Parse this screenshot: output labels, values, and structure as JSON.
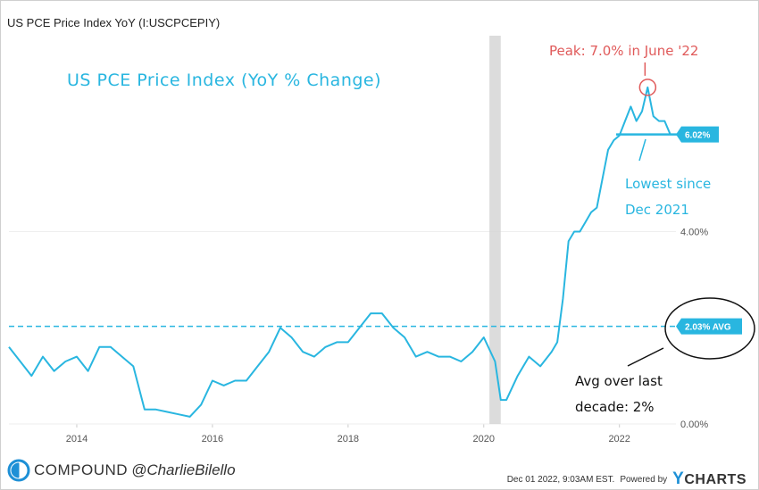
{
  "header": {
    "title": "US PCE Price Index YoY (I:USCPCEPIY)"
  },
  "footer": {
    "brand_name": "COMPOUND",
    "brand_handle": "@CharlieBilello",
    "timestamp": "Dec 01 2022, 9:03AM EST.",
    "powered_by": "Powered by",
    "provider_y": "Y",
    "provider_rest": "CHARTS"
  },
  "colors": {
    "series": "#29b6e0",
    "peak_annotation": "#e05a5a",
    "avg_annotation": "#111111",
    "recession_shade": "#d3d3d3",
    "grid": "#eeeeee"
  },
  "chart_data": {
    "type": "line",
    "title": "US PCE Price Index (YoY % Change)",
    "xlabel": "",
    "ylabel": "",
    "x_ticks": [
      "2014",
      "2016",
      "2018",
      "2020",
      "2022"
    ],
    "y_ticks": [
      "0.00%",
      "4.00%"
    ],
    "ylim": [
      0,
      8.0
    ],
    "xlim": [
      "2013-01",
      "2022-11"
    ],
    "grid": false,
    "recession_band": [
      "2020-02",
      "2020-04"
    ],
    "average_value": 2.03,
    "average_label": "2.03% AVG",
    "last_value": 6.02,
    "last_value_label": "6.02%",
    "annotations": {
      "peak": "Peak: 7.0% in June '22",
      "lowest_line1": "Lowest since",
      "lowest_line2": "Dec 2021",
      "avg_line1": "Avg over last",
      "avg_line2": "decade: 2%"
    },
    "series": [
      {
        "x": [
          "2013-01",
          "2013-03",
          "2013-05",
          "2013-07",
          "2013-09",
          "2013-11",
          "2014-01",
          "2014-03",
          "2014-05",
          "2014-07",
          "2014-09",
          "2014-11",
          "2015-01",
          "2015-03",
          "2015-05",
          "2015-07",
          "2015-09",
          "2015-11",
          "2016-01",
          "2016-03",
          "2016-05",
          "2016-07",
          "2016-09",
          "2016-11",
          "2017-01",
          "2017-03",
          "2017-05",
          "2017-07",
          "2017-09",
          "2017-11",
          "2018-01",
          "2018-03",
          "2018-05",
          "2018-07",
          "2018-09",
          "2018-11",
          "2019-01",
          "2019-03",
          "2019-05",
          "2019-07",
          "2019-09",
          "2019-11",
          "2020-01",
          "2020-03",
          "2020-04",
          "2020-05",
          "2020-07",
          "2020-09",
          "2020-11",
          "2021-01",
          "2021-02",
          "2021-03",
          "2021-04",
          "2021-05",
          "2021-06",
          "2021-07",
          "2021-08",
          "2021-09",
          "2021-10",
          "2021-11",
          "2021-12",
          "2022-01",
          "2022-02",
          "2022-03",
          "2022-04",
          "2022-05",
          "2022-06",
          "2022-07",
          "2022-08",
          "2022-09",
          "2022-10"
        ],
        "values": [
          1.6,
          1.3,
          1.0,
          1.4,
          1.1,
          1.3,
          1.4,
          1.1,
          1.6,
          1.6,
          1.4,
          1.2,
          0.3,
          0.3,
          0.25,
          0.2,
          0.15,
          0.4,
          0.9,
          0.8,
          0.9,
          0.9,
          1.2,
          1.5,
          2.0,
          1.8,
          1.5,
          1.4,
          1.6,
          1.7,
          1.7,
          2.0,
          2.3,
          2.3,
          2.0,
          1.8,
          1.4,
          1.5,
          1.4,
          1.4,
          1.3,
          1.5,
          1.8,
          1.3,
          0.5,
          0.5,
          1.0,
          1.4,
          1.2,
          1.5,
          1.7,
          2.6,
          3.8,
          4.0,
          4.0,
          4.2,
          4.4,
          4.5,
          5.1,
          5.7,
          5.9,
          6.0,
          6.3,
          6.6,
          6.3,
          6.5,
          7.0,
          6.4,
          6.3,
          6.3,
          6.02
        ]
      }
    ]
  }
}
